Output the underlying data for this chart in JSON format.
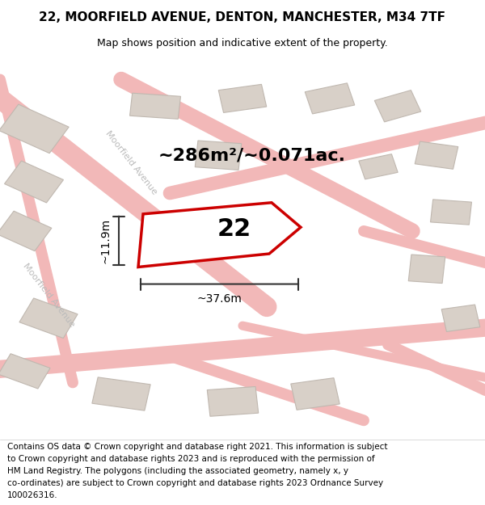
{
  "title": "22, MOORFIELD AVENUE, DENTON, MANCHESTER, M34 7TF",
  "subtitle": "Map shows position and indicative extent of the property.",
  "footer_lines": [
    "Contains OS data © Crown copyright and database right 2021. This information is subject",
    "to Crown copyright and database rights 2023 and is reproduced with the permission of",
    "HM Land Registry. The polygons (including the associated geometry, namely x, y",
    "co-ordinates) are subject to Crown copyright and database rights 2023 Ordnance Survey",
    "100026316."
  ],
  "area_label": "~286m²/~0.071ac.",
  "width_label": "~37.6m",
  "height_label": "~11.9m",
  "number_label": "22",
  "bg_color": "#f2ede8",
  "map_bg": "#f2ede8",
  "road_color": "#f2b8b8",
  "building_color": "#d8d0c8",
  "building_edge": "#c0b8b0",
  "plot_color": "#ffffff",
  "plot_edge": "#cc0000",
  "road_text_color": "#bbbbbb",
  "dim_line_color": "#333333",
  "title_fontsize": 11,
  "subtitle_fontsize": 9,
  "footer_fontsize": 7.5,
  "road_label": "Moorfield Avenue"
}
